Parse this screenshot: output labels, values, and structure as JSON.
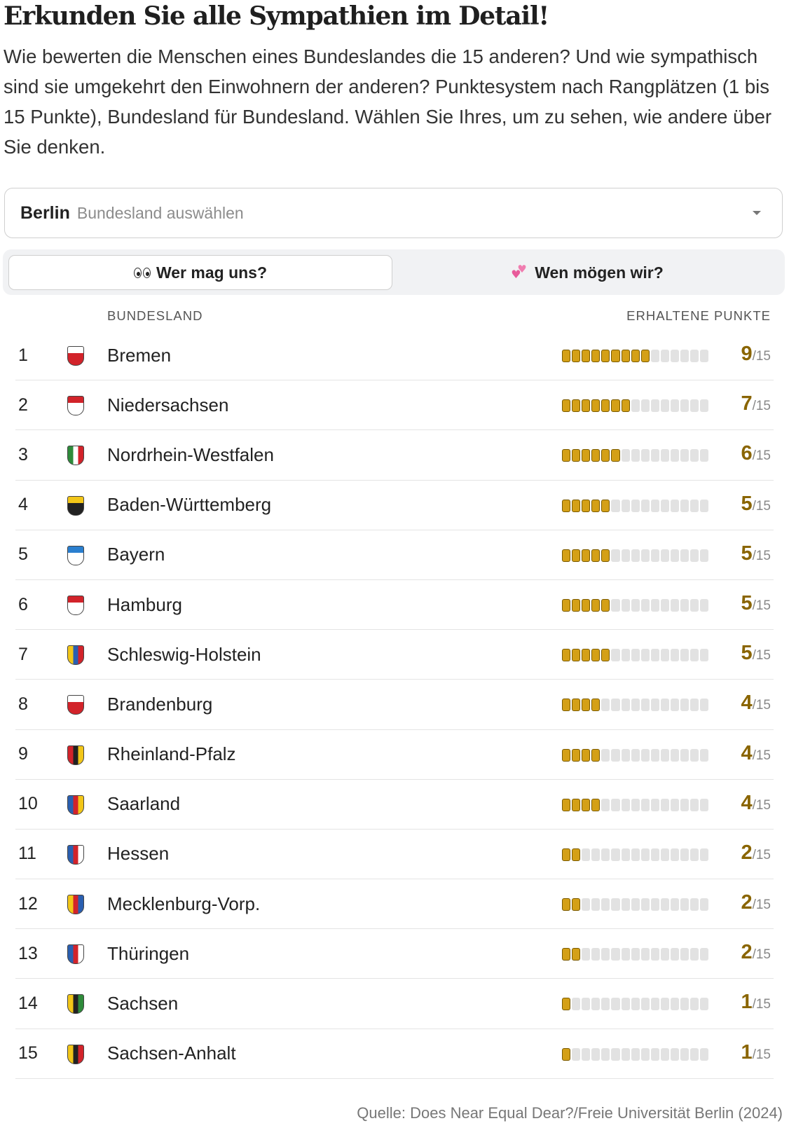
{
  "title": "Erkunden Sie alle Sympathien im Detail!",
  "intro": "Wie bewerten die Menschen eines Bundeslandes die 15 anderen? Und wie sympathisch sind sie umgekehrt den Einwohnern der anderen? Punktesystem nach Rangplätzen (1 bis 15 Punkte), Bundesland für Bundesland. Wählen Sie Ihres, um zu sehen, wie andere über Sie denken.",
  "select": {
    "value": "Berlin",
    "placeholder": "Bundesland auswählen",
    "icon": "chevron-down-icon"
  },
  "tabs": [
    {
      "label": "Wer mag uns?",
      "icon": "eyes-icon",
      "active": true
    },
    {
      "label": "Wen mögen wir?",
      "icon": "two-hearts-icon",
      "active": false
    }
  ],
  "table": {
    "col_state": "BUNDESLAND",
    "col_points": "ERHALTENE PUNKTE",
    "max_points": 15,
    "denominator_label": "/15",
    "accent_color": "#d4a017",
    "rows": [
      {
        "rank": "1",
        "name": "Bremen",
        "points": 9,
        "crest": {
          "icon": "bremen-crest-icon",
          "colors": [
            "#ffffff",
            "#d2232a"
          ]
        }
      },
      {
        "rank": "2",
        "name": "Niedersachsen",
        "points": 7,
        "crest": {
          "icon": "niedersachsen-crest-icon",
          "colors": [
            "#d2232a",
            "#ffffff"
          ]
        }
      },
      {
        "rank": "3",
        "name": "Nordrhein-Westfalen",
        "points": 6,
        "crest": {
          "icon": "nrw-crest-icon",
          "colors": [
            "#2e8b3a",
            "#ffffff",
            "#d2232a"
          ]
        }
      },
      {
        "rank": "4",
        "name": "Baden-Württemberg",
        "points": 5,
        "crest": {
          "icon": "baden-wuerttemberg-crest-icon",
          "colors": [
            "#f2c618",
            "#222222"
          ]
        }
      },
      {
        "rank": "5",
        "name": "Bayern",
        "points": 5,
        "crest": {
          "icon": "bayern-crest-icon",
          "colors": [
            "#2a7fcf",
            "#ffffff"
          ]
        }
      },
      {
        "rank": "6",
        "name": "Hamburg",
        "points": 5,
        "crest": {
          "icon": "hamburg-crest-icon",
          "colors": [
            "#d2232a",
            "#ffffff"
          ]
        }
      },
      {
        "rank": "7",
        "name": "Schleswig-Holstein",
        "points": 5,
        "crest": {
          "icon": "schleswig-holstein-crest-icon",
          "colors": [
            "#f2c618",
            "#2a5fb0",
            "#d2232a"
          ]
        }
      },
      {
        "rank": "8",
        "name": "Brandenburg",
        "points": 4,
        "crest": {
          "icon": "brandenburg-crest-icon",
          "colors": [
            "#ffffff",
            "#d2232a"
          ]
        }
      },
      {
        "rank": "9",
        "name": "Rheinland-Pfalz",
        "points": 4,
        "crest": {
          "icon": "rheinland-pfalz-crest-icon",
          "colors": [
            "#d2232a",
            "#222222",
            "#f2c618"
          ]
        }
      },
      {
        "rank": "10",
        "name": "Saarland",
        "points": 4,
        "crest": {
          "icon": "saarland-crest-icon",
          "colors": [
            "#2a5fb0",
            "#d2232a",
            "#f2c618"
          ]
        }
      },
      {
        "rank": "11",
        "name": "Hessen",
        "points": 2,
        "crest": {
          "icon": "hessen-crest-icon",
          "colors": [
            "#2a5fb0",
            "#d2232a",
            "#ffffff"
          ]
        }
      },
      {
        "rank": "12",
        "name": "Mecklenburg-Vorp.",
        "points": 2,
        "crest": {
          "icon": "mecklenburg-vorpommern-crest-icon",
          "colors": [
            "#f2c618",
            "#d2232a",
            "#2a5fb0"
          ]
        }
      },
      {
        "rank": "13",
        "name": "Thüringen",
        "points": 2,
        "crest": {
          "icon": "thueringen-crest-icon",
          "colors": [
            "#2a5fb0",
            "#d2232a",
            "#ffffff"
          ]
        }
      },
      {
        "rank": "14",
        "name": "Sachsen",
        "points": 1,
        "crest": {
          "icon": "sachsen-crest-icon",
          "colors": [
            "#f2c618",
            "#222222",
            "#2e8b3a"
          ]
        }
      },
      {
        "rank": "15",
        "name": "Sachsen-Anhalt",
        "points": 1,
        "crest": {
          "icon": "sachsen-anhalt-crest-icon",
          "colors": [
            "#f2c618",
            "#222222",
            "#d2232a"
          ]
        }
      }
    ]
  },
  "source": "Quelle: Does Near Equal Dear?/Freie Universität Berlin (2024)"
}
